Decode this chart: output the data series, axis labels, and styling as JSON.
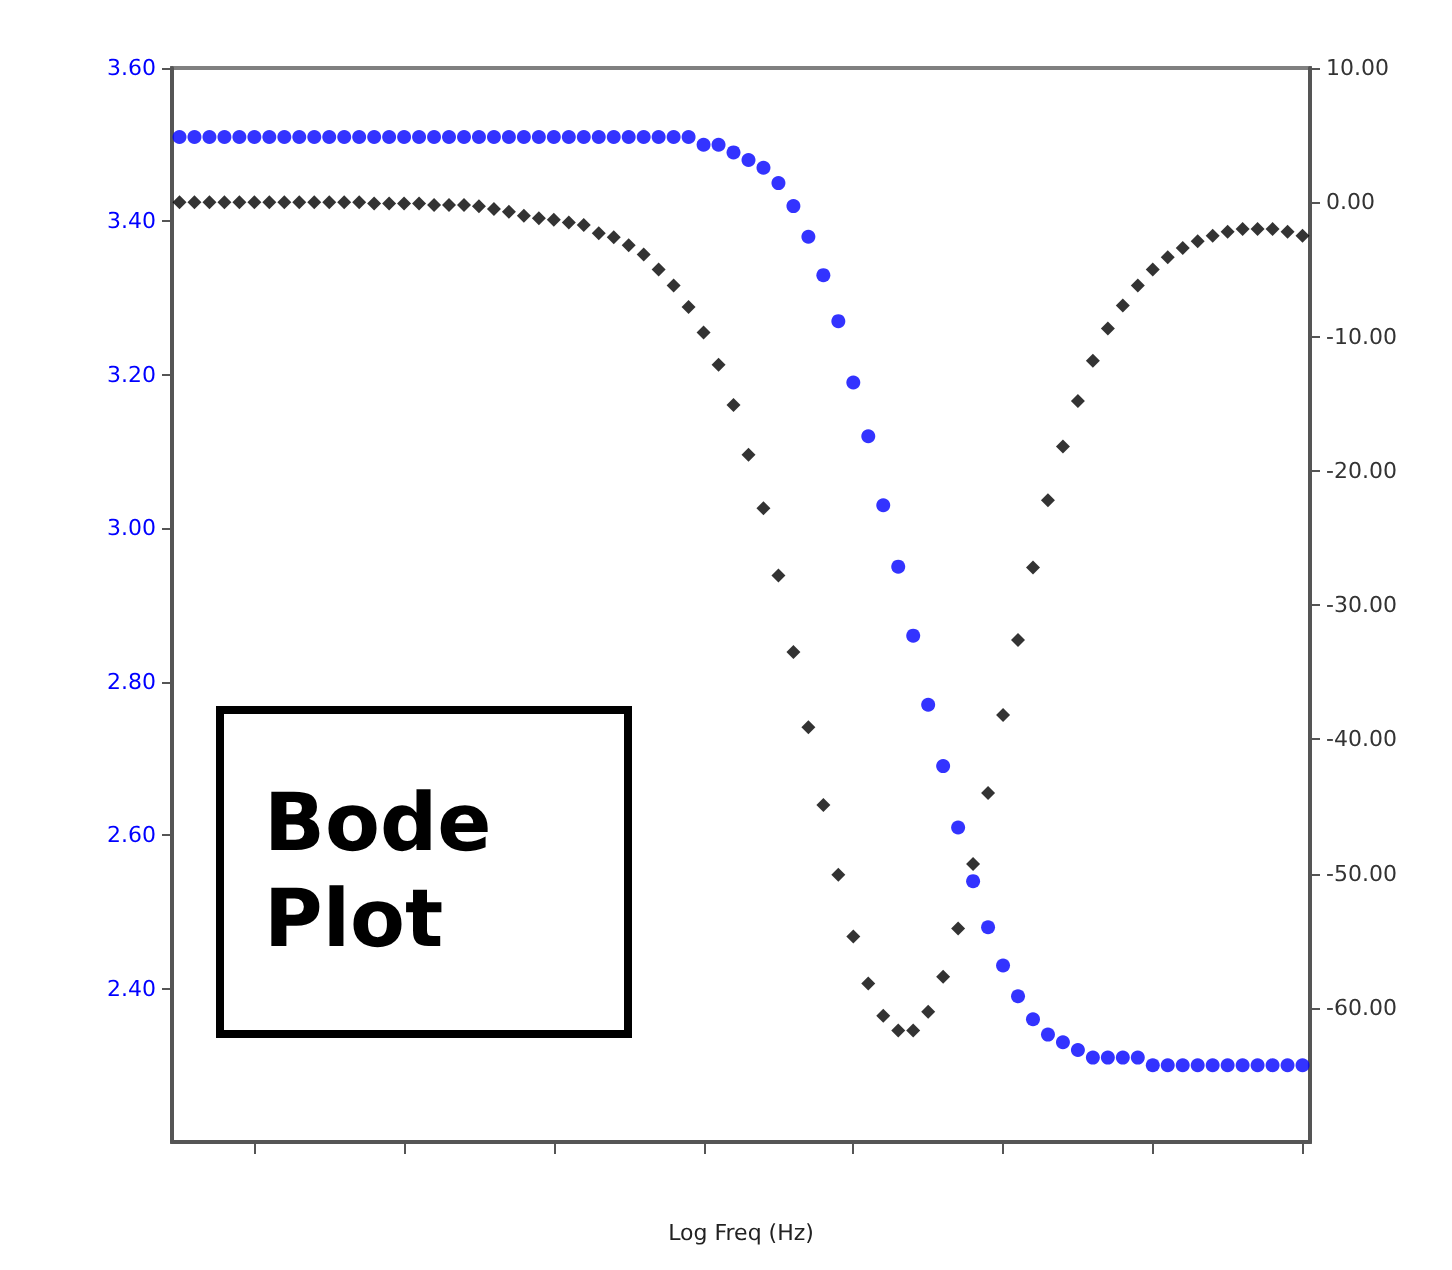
{
  "chart_data": {
    "type": "scatter",
    "xlabel": "Log Freq (Hz)",
    "annotations": [
      "Bode Plot"
    ],
    "categories": [
      null,
      null,
      null,
      null,
      null,
      null,
      null,
      null,
      null,
      null,
      null,
      null,
      null,
      null,
      null,
      null,
      null,
      null,
      null,
      null,
      null,
      null,
      null,
      null,
      null,
      null,
      null,
      null,
      null,
      null,
      null,
      null,
      null,
      null,
      null,
      null,
      null,
      null,
      null,
      null,
      null,
      null,
      null,
      null,
      null,
      null,
      null,
      null,
      null,
      null,
      null,
      null,
      null,
      null,
      null,
      null,
      null,
      null,
      null,
      null,
      null,
      null,
      null,
      null,
      null,
      null,
      null,
      null,
      null,
      null,
      null,
      null,
      null,
      null,
      null,
      null
    ],
    "series": [
      {
        "color": "#0000ff",
        "marker": "circle",
        "values": [
          3.51,
          3.51,
          3.51,
          3.51,
          3.51,
          3.51,
          3.51,
          3.51,
          3.51,
          3.51,
          3.51,
          3.51,
          3.51,
          3.51,
          3.51,
          3.51,
          3.51,
          3.51,
          3.51,
          3.51,
          3.51,
          3.51,
          3.51,
          3.51,
          3.51,
          3.51,
          3.51,
          3.51,
          3.51,
          3.51,
          3.51,
          3.51,
          3.51,
          3.51,
          3.51,
          3.5,
          3.5,
          3.49,
          3.48,
          3.47,
          3.45,
          3.42,
          3.38,
          3.33,
          3.27,
          3.19,
          3.12,
          3.03,
          2.95,
          2.86,
          2.77,
          2.69,
          2.61,
          2.54,
          2.48,
          2.43,
          2.39,
          2.36,
          2.34,
          2.33,
          2.32,
          2.31,
          2.31,
          2.31,
          2.31,
          2.3,
          2.3,
          2.3,
          2.3,
          2.3,
          2.3,
          2.3,
          2.3,
          2.3,
          2.3,
          2.3
        ]
      },
      {
        "color": "#000000",
        "marker": "diamond",
        "axis": "y2",
        "values": [
          0,
          0,
          0,
          0,
          0,
          0,
          0,
          0,
          0,
          0,
          0,
          0,
          0,
          -0.1,
          -0.1,
          -0.1,
          -0.1,
          -0.2,
          -0.2,
          -0.2,
          -0.3,
          -0.5,
          -0.7,
          -1.0,
          -1.2,
          -1.3,
          -1.5,
          -1.7,
          -2.3,
          -2.6,
          -3.2,
          -3.9,
          -5.0,
          -6.2,
          -7.8,
          -9.7,
          -12.1,
          -15.1,
          -18.8,
          -22.8,
          -27.8,
          -33.5,
          -39.1,
          -44.9,
          -50.1,
          -54.7,
          -58.2,
          -60.6,
          -61.7,
          -61.7,
          -60.3,
          -57.7,
          -54.1,
          -49.3,
          -44.0,
          -38.2,
          -32.6,
          -27.2,
          -22.2,
          -18.2,
          -14.8,
          -11.8,
          -9.4,
          -7.7,
          -6.2,
          -5.0,
          -4.1,
          -3.4,
          -2.9,
          -2.5,
          -2.2,
          -2.0,
          -2.0,
          -2.0,
          -2.2,
          -2.5
        ]
      }
    ],
    "ylim": [
      2.2,
      3.6
    ],
    "yticks": [
      {
        "value": 2.4,
        "label": "2.40"
      },
      {
        "value": 2.6,
        "label": "2.60"
      },
      {
        "value": 2.8,
        "label": "2.80"
      },
      {
        "value": 3.0,
        "label": "3.00"
      },
      {
        "value": 3.2,
        "label": "3.20"
      },
      {
        "value": 3.4,
        "label": "3.40"
      },
      {
        "value": 3.6,
        "label": "3.60"
      }
    ],
    "y2lim": [
      -70,
      10
    ],
    "y2ticks": [
      {
        "value": -60,
        "label": "-60.00"
      },
      {
        "value": -50,
        "label": "-50.00"
      },
      {
        "value": -40,
        "label": "-40.00"
      },
      {
        "value": -30,
        "label": "-30.00"
      },
      {
        "value": -20,
        "label": "-20.00"
      },
      {
        "value": -10,
        "label": "-10.00"
      },
      {
        "value": 0,
        "label": "0.00"
      },
      {
        "value": 10,
        "label": "10.00"
      }
    ],
    "grid": false
  }
}
